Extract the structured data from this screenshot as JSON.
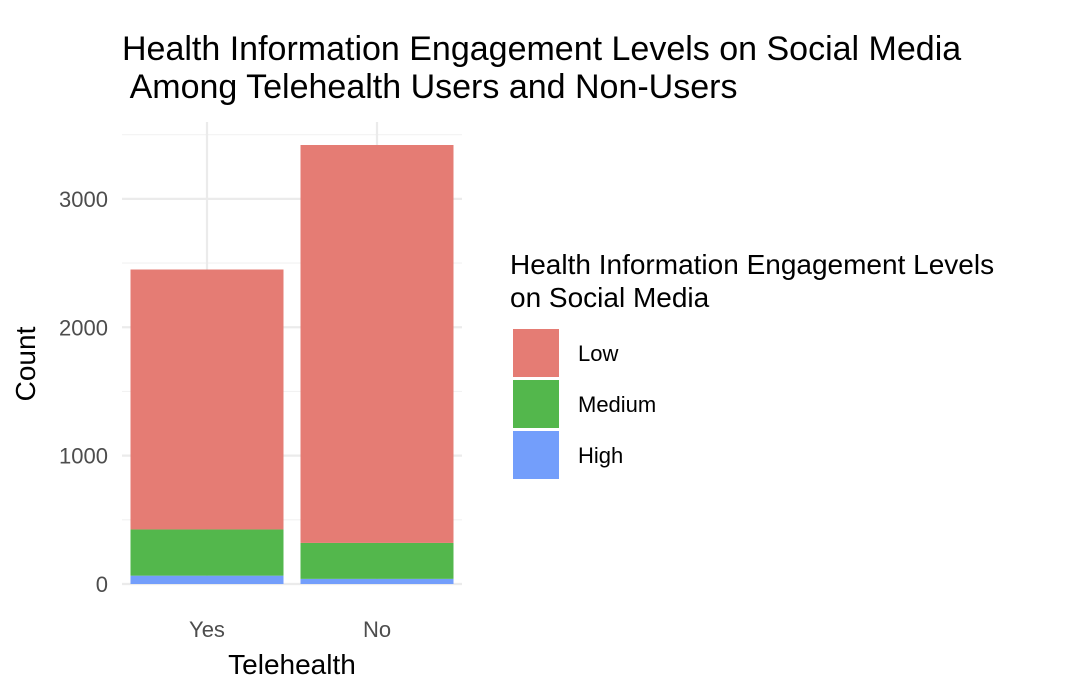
{
  "chart_data": {
    "type": "bar",
    "stacked": true,
    "title_lines": [
      "Health Information Engagement Levels on Social Media",
      " Among Telehealth Users and Non-Users"
    ],
    "xlabel": "Telehealth",
    "ylabel": "Count",
    "categories": [
      "Yes",
      "No"
    ],
    "series": [
      {
        "name": "Low",
        "color": "#E57C74",
        "values": [
          2025,
          3100
        ]
      },
      {
        "name": "Medium",
        "color": "#53B74C",
        "values": [
          360,
          280
        ]
      },
      {
        "name": "High",
        "color": "#739EFB",
        "values": [
          65,
          40
        ]
      }
    ],
    "ylim": [
      0,
      3420
    ],
    "yticks": [
      0,
      1000,
      2000,
      3000
    ],
    "yticks_minor": [
      500,
      1500,
      2500
    ],
    "grid": true,
    "legend": {
      "title_lines": [
        "Health Information Engagement Levels",
        "on Social Media"
      ],
      "placement": "right",
      "order": [
        "Low",
        "Medium",
        "High"
      ]
    }
  }
}
